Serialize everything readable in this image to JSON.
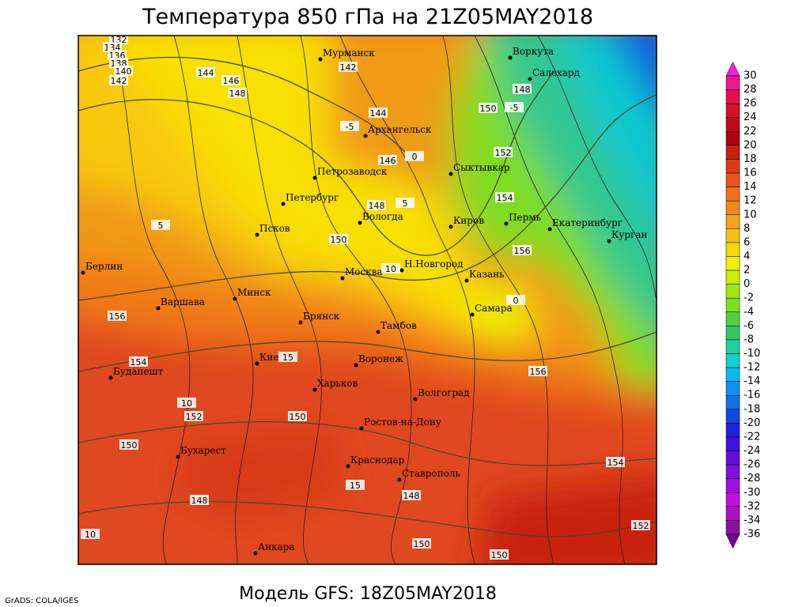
{
  "title": "Температура 850 гПа на 21Z05MAY2018",
  "model": "Модель GFS: 18Z05MAY2018",
  "credit": "GrADS: COLA/IGES",
  "cities": [
    "Мурманск",
    "Воркута",
    "Салехард",
    "Архангельск",
    "Петрозаводск",
    "Сыктывкар",
    "Петербург",
    "Вологда",
    "Киров",
    "Пермь",
    "Екатеринбург",
    "Курган",
    "Псков",
    "Берлин",
    "Москва",
    "Н.Новгород",
    "Казань",
    "Минск",
    "Варшава",
    "Самара",
    "Брянск",
    "Тамбов",
    "Киев",
    "Воронеж",
    "Будапешт",
    "Харьков",
    "Волгоград",
    "Ростов-на-Дону",
    "Бухарест",
    "Краснодар",
    "Ставрополь",
    "Анкара"
  ],
  "contour_labels": [
    132,
    134,
    136,
    138,
    140,
    142,
    142,
    144,
    146,
    148,
    144,
    146,
    148,
    150,
    150,
    148,
    152,
    154,
    156,
    156,
    154,
    152,
    150,
    148,
    150,
    156,
    154,
    152,
    148,
    150,
    150,
    -5,
    0,
    5,
    10,
    0,
    15,
    10,
    15,
    10,
    -5,
    5
  ],
  "colorbar": {
    "labels": [
      30,
      28,
      26,
      24,
      22,
      20,
      18,
      16,
      14,
      12,
      10,
      8,
      6,
      4,
      2,
      0,
      -2,
      -4,
      -6,
      -8,
      -10,
      -12,
      -14,
      -16,
      -18,
      -20,
      -22,
      -24,
      -26,
      -28,
      -30,
      -32,
      -34,
      -36
    ],
    "colors": [
      "#f020e0",
      "#f01890",
      "#e8104c",
      "#d81028",
      "#c00818",
      "#b00010",
      "#c82010",
      "#e03a14",
      "#e8561a",
      "#f07018",
      "#f08a1a",
      "#f4a41c",
      "#f8c010",
      "#f8d800",
      "#f0f000",
      "#c8f000",
      "#a0e810",
      "#78e020",
      "#50d040",
      "#30c860",
      "#20d0a0",
      "#10d0d0",
      "#10b8f0",
      "#1090f0",
      "#1070e8",
      "#1048e0",
      "#2020e0",
      "#4010e0",
      "#6010d8",
      "#8010e0",
      "#a010e0",
      "#c010e0",
      "#b010c0",
      "#9010a0",
      "#700890"
    ]
  }
}
